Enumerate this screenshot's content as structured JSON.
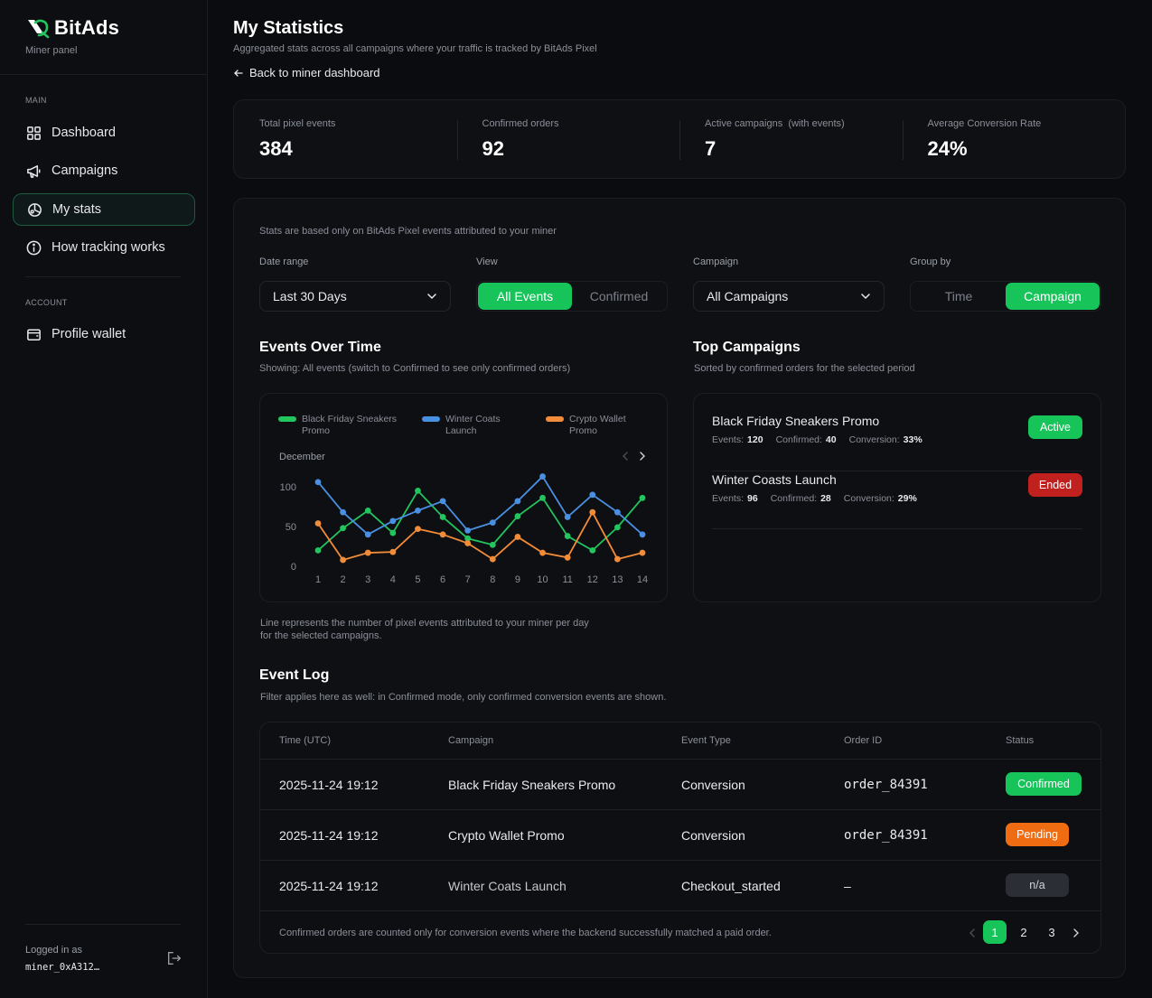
{
  "brand": {
    "name": "BitAds",
    "subtitle": "Miner panel"
  },
  "sidebar": {
    "main_label": "MAIN",
    "items": [
      {
        "label": "Dashboard",
        "icon": "grid-icon"
      },
      {
        "label": "Campaigns",
        "icon": "megaphone-icon"
      },
      {
        "label": "My stats",
        "icon": "stats-icon",
        "active": true
      },
      {
        "label": "How tracking works",
        "icon": "info-icon"
      }
    ],
    "account_label": "ACCOUNT",
    "account_items": [
      {
        "label": "Profile wallet",
        "icon": "wallet-icon"
      }
    ],
    "logged_label": "Logged in as",
    "logged_user": "miner_0xA312…"
  },
  "header": {
    "title": "My Statistics",
    "subtitle": "Aggregated stats across all campaigns where your traffic is tracked by BitAds Pixel",
    "back": "Back to miner dashboard"
  },
  "stats": [
    {
      "label": "Total pixel events",
      "value": "384"
    },
    {
      "label": "Confirmed orders",
      "value": "92"
    },
    {
      "label": "Active campaigns  (with events)",
      "value": "7"
    },
    {
      "label": "Average Conversion Rate",
      "value": "24%"
    }
  ],
  "filters": {
    "note": "Stats are based only on BitAds Pixel events attributed to your miner",
    "date_label": "Date range",
    "date_value": "Last 30 Days",
    "view_label": "View",
    "view_options": [
      "All Events",
      "Confirmed"
    ],
    "view_selected": "All Events",
    "campaign_label": "Campaign",
    "campaign_value": "All Campaigns",
    "group_label": "Group by",
    "group_options": [
      "Time",
      "Campaign"
    ],
    "group_selected": "Campaign"
  },
  "events_chart": {
    "title": "Events Over Time",
    "subtitle": "Showing: All events (switch to Confirmed to see only confirmed orders)",
    "month": "December",
    "footnote_1": "Line represents the number of pixel events attributed to your miner per day",
    "footnote_2": "for the selected campaigns."
  },
  "chart_data": {
    "type": "line",
    "x": [
      1,
      2,
      3,
      4,
      5,
      6,
      7,
      8,
      9,
      10,
      11,
      12,
      13,
      14
    ],
    "ylim": [
      0,
      100
    ],
    "yticks": [
      0,
      50,
      100
    ],
    "grid": false,
    "legend": "top",
    "series": [
      {
        "name": "Black Friday Sneakers Promo",
        "color": "#22c55e",
        "values": [
          20,
          48,
          70,
          42,
          95,
          62,
          35,
          27,
          63,
          86,
          38,
          20,
          49,
          86
        ]
      },
      {
        "name": "Winter Coats Launch",
        "color": "#4a90e2",
        "values": [
          106,
          68,
          40,
          57,
          70,
          82,
          45,
          55,
          82,
          113,
          62,
          90,
          68,
          40
        ]
      },
      {
        "name": "Crypto Wallet Promo",
        "color": "#f28c38",
        "values": [
          54,
          8,
          17,
          18,
          47,
          40,
          29,
          9,
          37,
          17,
          11,
          68,
          9,
          17
        ]
      }
    ]
  },
  "top_campaigns": {
    "title": "Top Campaigns",
    "subtitle": "Sorted by confirmed orders for the selected period",
    "events_label": "Events:",
    "confirmed_label": "Confirmed:",
    "conversion_label": "Conversion:",
    "items": [
      {
        "name": "Black Friday Sneakers Promo",
        "events": "120",
        "confirmed": "40",
        "conversion": "33%",
        "status": "Active",
        "status_color": "#16c45a"
      },
      {
        "name": "Winter Coasts Launch",
        "events": "96",
        "confirmed": "28",
        "conversion": "29%",
        "status": "Ended",
        "status_color": "#c0211f"
      }
    ]
  },
  "event_log": {
    "title": "Event Log",
    "subtitle": "Filter applies here as well: in Confirmed mode, only confirmed conversion events are shown.",
    "columns": [
      "Time (UTC)",
      "Campaign",
      "Event Type",
      "Order ID",
      "Status"
    ],
    "rows": [
      {
        "time": "2025-11-24 19:12",
        "campaign": "Black Friday Sneakers Promo",
        "type": "Conversion",
        "order": "order_84391",
        "status": "Confirmed",
        "status_color": "#16c45a"
      },
      {
        "time": "2025-11-24 19:12",
        "campaign": "Crypto Wallet Promo",
        "type": "Conversion",
        "order": "order_84391",
        "status": "Pending",
        "status_color": "#ef6c12"
      },
      {
        "time": "2025-11-24 19:12",
        "campaign": "Winter Coats Launch",
        "type": "Checkout_started",
        "order": "–",
        "status": "n/a",
        "status_color": "#2b2e35"
      }
    ],
    "footer": "Confirmed orders are counted only for conversion events where the backend successfully matched a paid order.",
    "pages": [
      "1",
      "2",
      "3"
    ],
    "current_page": "1"
  }
}
